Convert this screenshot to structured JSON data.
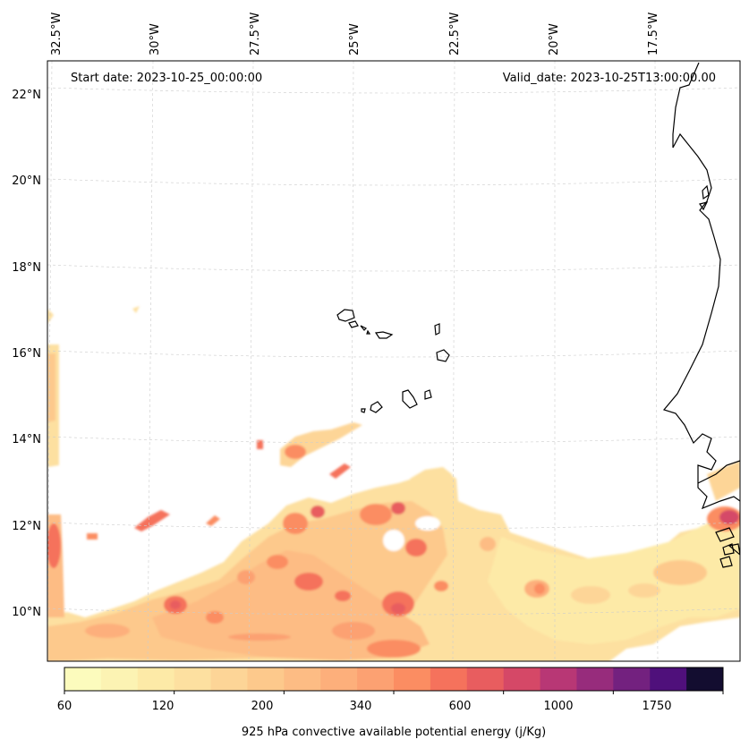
{
  "header": {
    "start_date": "Start date: 2023-10-25_00:00:00",
    "valid_date": "Valid_date: 2023-10-25T13:00:00.00"
  },
  "axes": {
    "lon_ticks": [
      "32.5°W",
      "30°W",
      "27.5°W",
      "25°W",
      "22.5°W",
      "20°W",
      "17.5°W"
    ],
    "lat_ticks": [
      "22°N",
      "20°N",
      "18°N",
      "16°N",
      "14°N",
      "12°N",
      "10°N"
    ],
    "lon_range": [
      -33.2,
      -15.6
    ],
    "lat_range": [
      8.9,
      22.6
    ],
    "gridlines": true
  },
  "colorbar": {
    "label": "925 hPa convective available potential energy (j/Kg)",
    "tick_labels": [
      "60",
      "120",
      "200",
      "340",
      "600",
      "1000",
      "1750"
    ],
    "colors": [
      "#fcfbbd",
      "#fcf3b3",
      "#fdeaa7",
      "#fde0a0",
      "#fdd597",
      "#fdc98c",
      "#fdbc84",
      "#fdaf7b",
      "#fca172",
      "#fb8d62",
      "#f5725c",
      "#e85d5f",
      "#d54867",
      "#b83775",
      "#972c7c",
      "#73217f",
      "#4f107b",
      "#130d30"
    ]
  },
  "chart_data": {
    "type": "heatmap",
    "title": "",
    "variable": "925 hPa convective available potential energy (j/Kg)",
    "levels": [
      60,
      120,
      200,
      340,
      600,
      1000,
      1750
    ],
    "regions": [
      {
        "area": "south-central tropical Atlantic band 9–12.5°N, 32°W–21°W",
        "cape_range": [
          120,
          600
        ]
      },
      {
        "area": "scattered cells near 13.5°N, 26°W",
        "cape_range": [
          200,
          600
        ]
      },
      {
        "area": "western strip near 33°W, 12–16°N",
        "cape_range": [
          200,
          600
        ]
      },
      {
        "area": "West African coast near 12°N, 16°W",
        "cape_range": [
          600,
          1200
        ]
      },
      {
        "area": "eastern band 9–11.5°N, 21°W–15.5°W",
        "cape_range": [
          60,
          340
        ]
      }
    ]
  }
}
